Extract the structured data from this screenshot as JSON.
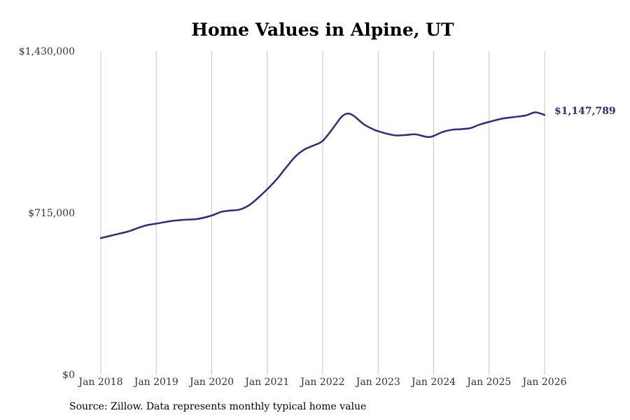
{
  "chart_data": {
    "type": "line",
    "title": "Home Values in Alpine, UT",
    "xlabel": "",
    "ylabel": "",
    "ylim": [
      0,
      1430000
    ],
    "xlim": [
      2018.0,
      2026.0
    ],
    "y_ticks": [
      {
        "value": 0,
        "label": "$0"
      },
      {
        "value": 715000,
        "label": "$715,000"
      },
      {
        "value": 1430000,
        "label": "$1,430,000"
      }
    ],
    "x_ticks": [
      {
        "value": 2018,
        "label": "Jan 2018"
      },
      {
        "value": 2019,
        "label": "Jan 2019"
      },
      {
        "value": 2020,
        "label": "Jan 2020"
      },
      {
        "value": 2021,
        "label": "Jan 2021"
      },
      {
        "value": 2022,
        "label": "Jan 2022"
      },
      {
        "value": 2023,
        "label": "Jan 2023"
      },
      {
        "value": 2024,
        "label": "Jan 2024"
      },
      {
        "value": 2025,
        "label": "Jan 2025"
      },
      {
        "value": 2026,
        "label": "Jan 2026"
      }
    ],
    "grid": "vertical",
    "series": [
      {
        "name": "Typical home value",
        "color": "#2e2a8c",
        "end_label": "$1,147,789",
        "x": [
          2018.0,
          2018.25,
          2018.5,
          2018.67,
          2018.83,
          2019.0,
          2019.25,
          2019.5,
          2019.75,
          2020.0,
          2020.17,
          2020.33,
          2020.5,
          2020.67,
          2020.83,
          2021.0,
          2021.17,
          2021.33,
          2021.5,
          2021.67,
          2021.83,
          2022.0,
          2022.17,
          2022.33,
          2022.42,
          2022.5,
          2022.58,
          2022.75,
          2022.92,
          2023.0,
          2023.17,
          2023.33,
          2023.5,
          2023.67,
          2023.83,
          2023.92,
          2024.0,
          2024.17,
          2024.33,
          2024.5,
          2024.67,
          2024.83,
          2025.0,
          2025.25,
          2025.5,
          2025.67,
          2025.83,
          2026.0
        ],
        "values": [
          603000,
          618000,
          633000,
          648000,
          660000,
          667000,
          678000,
          684000,
          688000,
          703000,
          719000,
          725000,
          729000,
          748000,
          780000,
          819000,
          863000,
          912000,
          962000,
          995000,
          1012000,
          1033000,
          1084000,
          1137000,
          1152000,
          1152000,
          1140000,
          1105000,
          1083000,
          1076000,
          1064000,
          1057000,
          1059000,
          1062000,
          1053000,
          1050000,
          1055000,
          1073000,
          1082000,
          1085000,
          1090000,
          1105000,
          1117000,
          1132000,
          1140000,
          1146000,
          1159000,
          1147789
        ]
      }
    ]
  },
  "source": "Source: Zillow. Data represents monthly typical home value"
}
